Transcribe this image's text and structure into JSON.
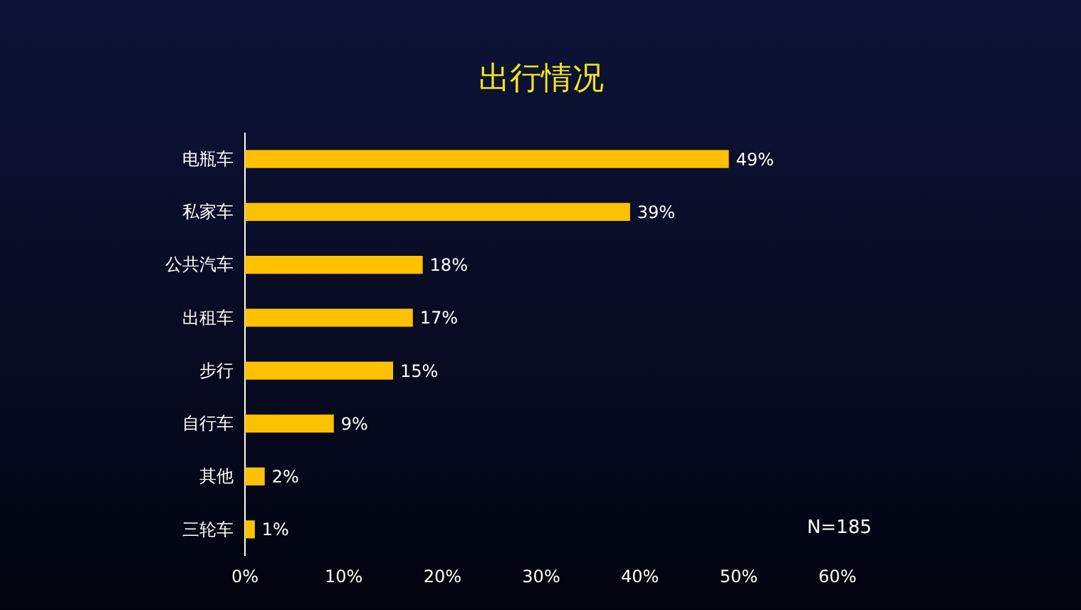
{
  "chart_data": {
    "type": "bar",
    "orientation": "horizontal",
    "title": "出行情况",
    "categories": [
      "电瓶车",
      "私家车",
      "公共汽车",
      "出租车",
      "步行",
      "自行车",
      "其他",
      "三轮车"
    ],
    "values": [
      49,
      39,
      18,
      17,
      15,
      9,
      2,
      1
    ],
    "value_labels": [
      "49%",
      "39%",
      "18%",
      "17%",
      "15%",
      "9%",
      "2%",
      "1%"
    ],
    "color": "#ffc000",
    "xlim": [
      0,
      60
    ],
    "xticks": [
      {
        "value": 0,
        "label": "0%"
      },
      {
        "value": 10,
        "label": "10%"
      },
      {
        "value": 20,
        "label": "20%"
      },
      {
        "value": 30,
        "label": "30%"
      },
      {
        "value": 40,
        "label": "40%"
      },
      {
        "value": 50,
        "label": "50%"
      },
      {
        "value": 60,
        "label": "60%"
      }
    ],
    "grid": false,
    "annotations": [
      "N=185"
    ]
  }
}
